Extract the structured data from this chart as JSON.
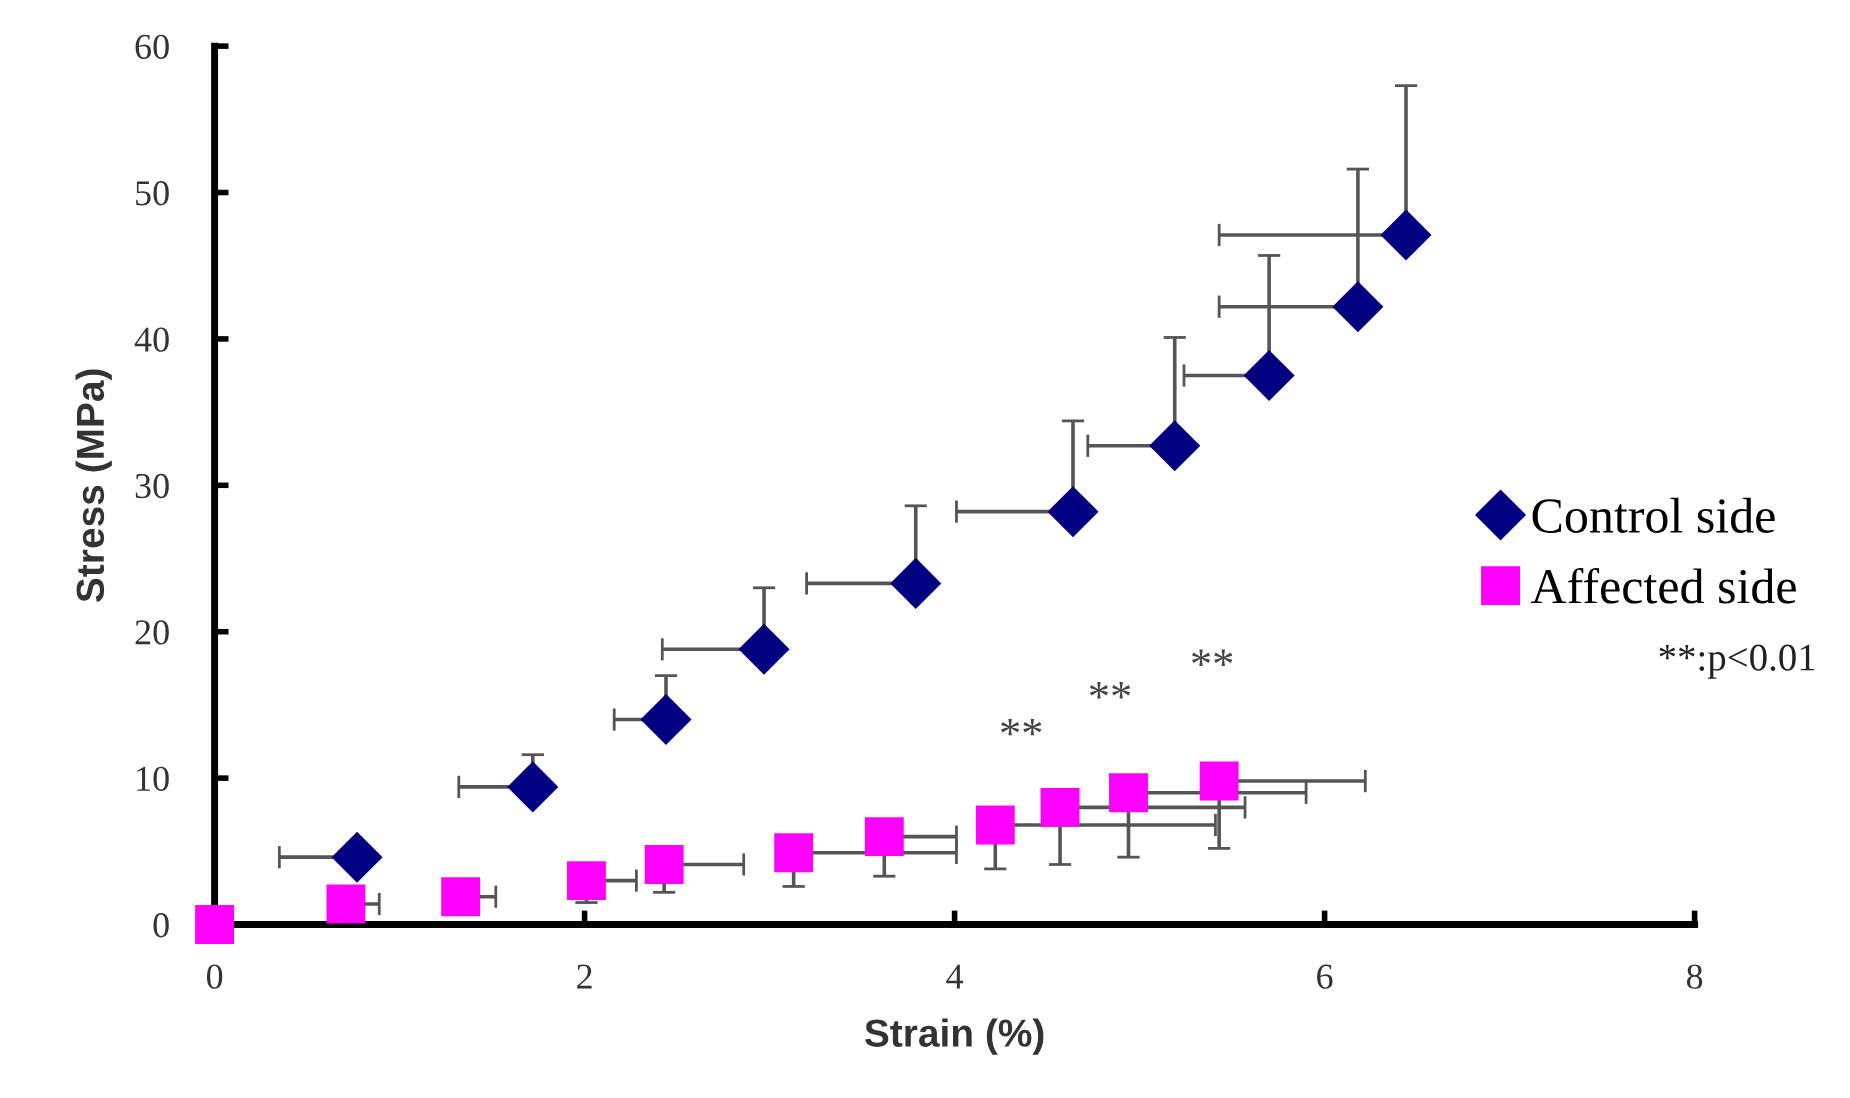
{
  "chart_data": {
    "type": "scatter",
    "xlabel": "Strain (%)",
    "ylabel": "Stress (MPa)",
    "xlim": [
      0,
      8
    ],
    "ylim": [
      0,
      60
    ],
    "xticks": [
      0,
      2,
      4,
      6,
      8
    ],
    "yticks": [
      0,
      10,
      20,
      30,
      40,
      50,
      60
    ],
    "grid": false,
    "legend": "right",
    "series": [
      {
        "name": "Control side",
        "color": "#000080",
        "marker": "diamond",
        "x": [
          0.77,
          1.72,
          2.44,
          2.97,
          3.79,
          4.64,
          5.19,
          5.7,
          6.18,
          6.44
        ],
        "values": [
          4.6,
          9.4,
          14.0,
          18.8,
          23.3,
          28.2,
          32.7,
          37.5,
          42.2,
          47.1
        ],
        "errors": [
          [
            4.6,
            4.6
          ],
          [
            9.4,
            11.6
          ],
          [
            14.0,
            17.0
          ],
          [
            18.8,
            23.0
          ],
          [
            23.3,
            28.6
          ],
          [
            28.2,
            34.4
          ],
          [
            32.7,
            40.1
          ],
          [
            37.5,
            45.7
          ],
          [
            42.2,
            51.6
          ],
          [
            47.1,
            57.3
          ]
        ],
        "xerrors": [
          [
            0.35,
            0.77
          ],
          [
            1.32,
            1.72
          ],
          [
            2.16,
            2.44
          ],
          [
            2.42,
            2.97
          ],
          [
            3.2,
            3.79
          ],
          [
            4.01,
            4.64
          ],
          [
            4.72,
            5.19
          ],
          [
            5.24,
            5.7
          ],
          [
            5.43,
            6.18
          ],
          [
            5.43,
            6.44
          ]
        ]
      },
      {
        "name": "Affected side",
        "color": "#ff00ff",
        "marker": "square",
        "x": [
          0,
          0.71,
          1.33,
          2.01,
          2.43,
          3.13,
          3.62,
          4.22,
          4.57,
          4.94,
          5.43
        ],
        "values": [
          0,
          1.4,
          1.9,
          3.0,
          4.1,
          4.9,
          6.0,
          6.8,
          8.0,
          9.0,
          9.8
        ],
        "errors": [
          [
            0,
            0
          ],
          [
            1.4,
            1.4
          ],
          [
            1.9,
            1.9
          ],
          [
            1.5,
            3.0
          ],
          [
            2.2,
            4.1
          ],
          [
            2.6,
            4.9
          ],
          [
            3.3,
            6.0
          ],
          [
            3.8,
            6.8
          ],
          [
            4.1,
            8.0
          ],
          [
            4.6,
            9.0
          ],
          [
            5.2,
            9.8
          ]
        ],
        "xerrors": [
          [
            0,
            0
          ],
          [
            0.71,
            0.89
          ],
          [
            1.33,
            1.52
          ],
          [
            2.01,
            2.28
          ],
          [
            2.43,
            2.86
          ],
          [
            3.13,
            4.01
          ],
          [
            3.62,
            4.01
          ],
          [
            4.22,
            5.41
          ],
          [
            4.57,
            5.57
          ],
          [
            4.94,
            5.9
          ],
          [
            5.43,
            6.22
          ]
        ]
      }
    ],
    "annotations": [
      "**",
      "**",
      "**",
      "**:p<0.01"
    ]
  }
}
